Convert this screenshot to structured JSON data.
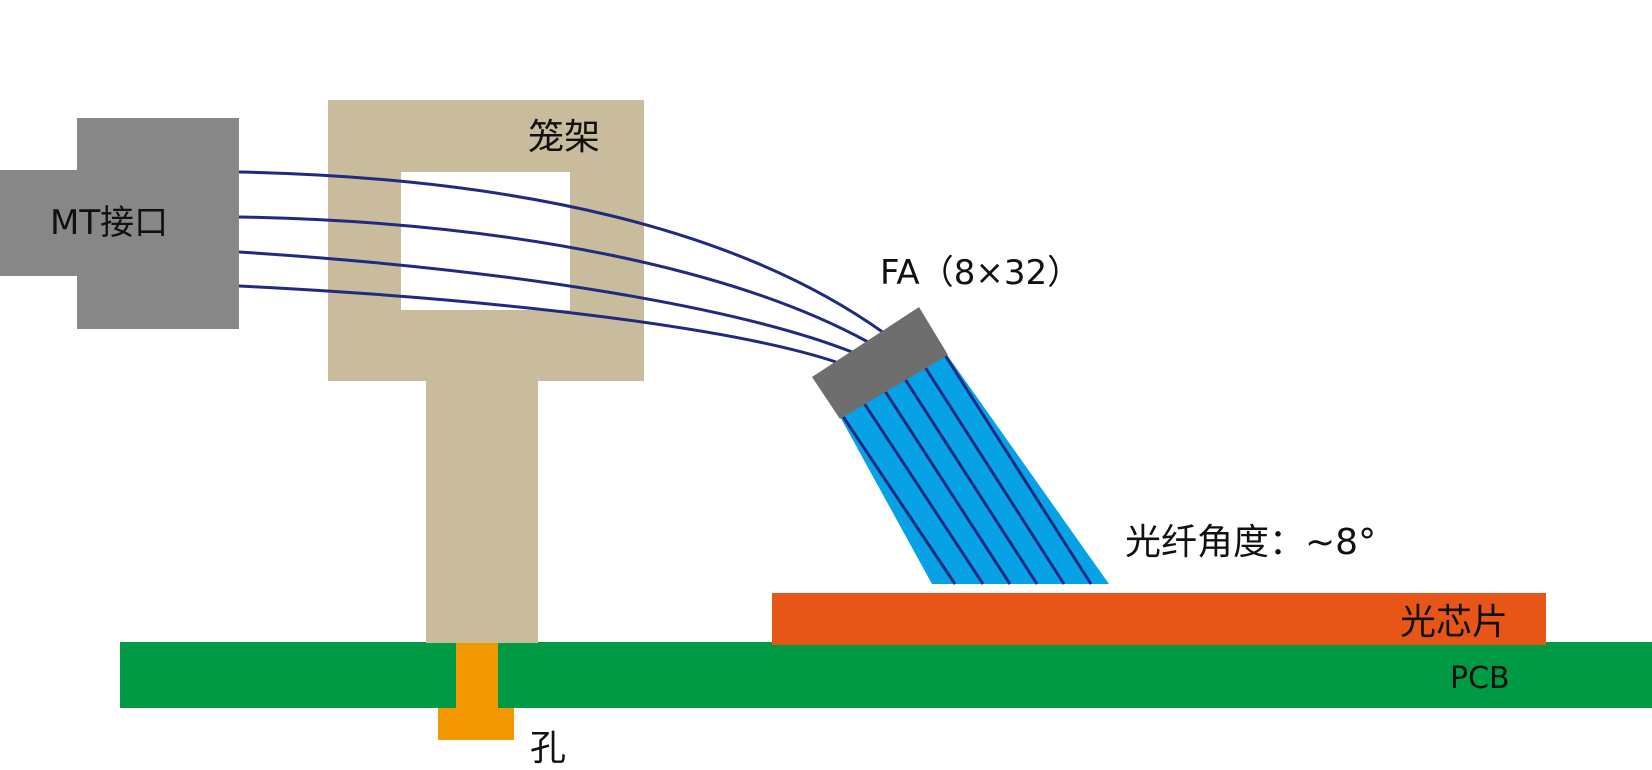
{
  "labels": {
    "mt_interface": "MT接口",
    "cage": "笼架",
    "fa": "FA（8×32）",
    "fiber_angle": "光纤角度：~8°",
    "chip": "光芯片",
    "pcb": "PCB",
    "hole": "孔"
  },
  "colors": {
    "background": "#ffffff",
    "mt_block": "#878787",
    "cage": "#c8bc9d",
    "fiber": "#1f2a80",
    "fa_head": "#6e6e6e",
    "fa_body": "#07a2e6",
    "fa_lines": "#1f2a80",
    "chip": "#e75616",
    "pcb": "#009a44",
    "hole_pin": "#f39800",
    "text": "#111111"
  }
}
